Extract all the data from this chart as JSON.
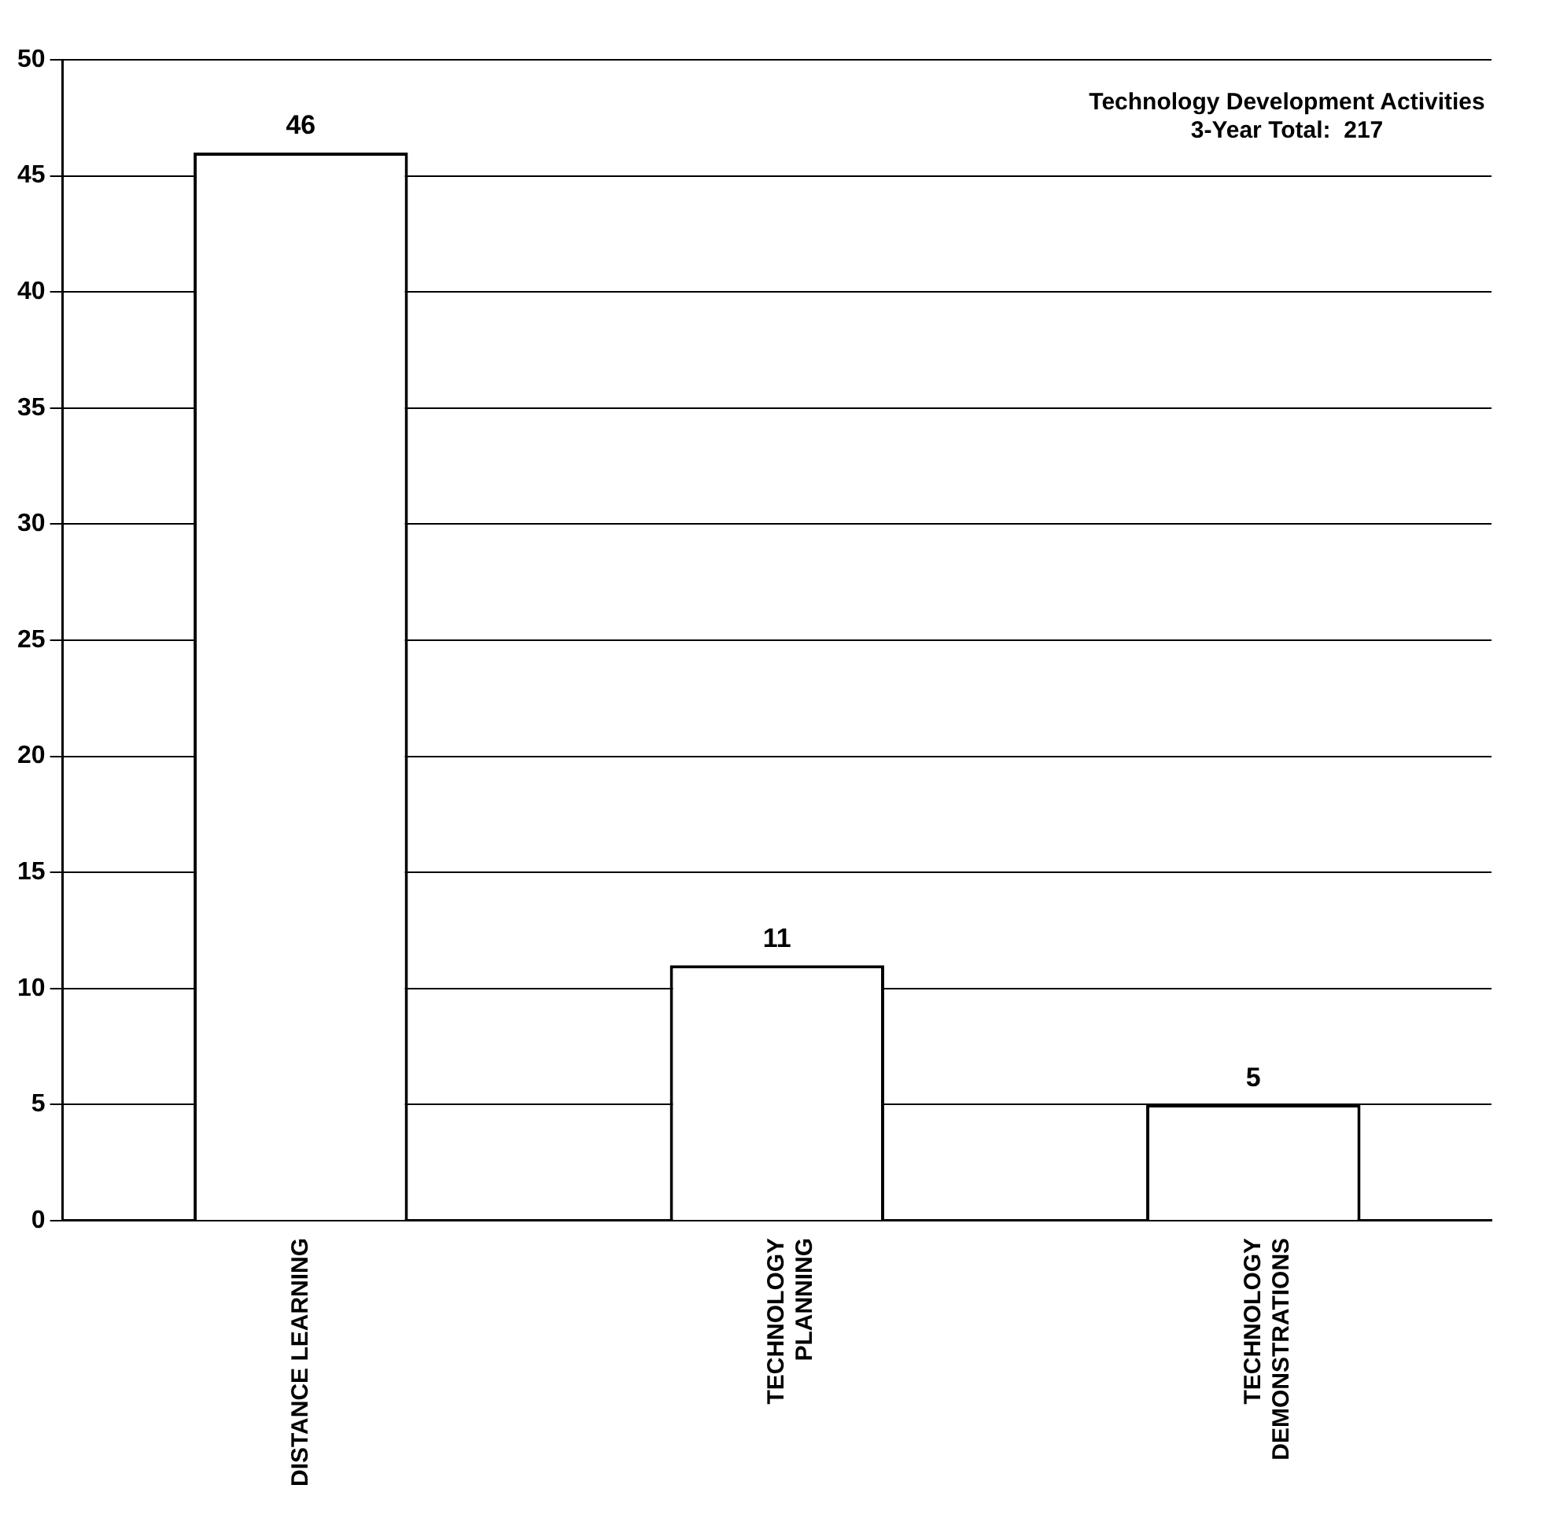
{
  "chart_data": {
    "type": "bar",
    "categories": [
      "DISTANCE LEARNING",
      "TECHNOLOGY\nPLANNING",
      "TECHNOLOGY\nDEMONSTRATIONS"
    ],
    "values": [
      46,
      11,
      5
    ],
    "color": "#ffffff",
    "ylim": [
      0,
      50
    ],
    "yticks": [
      0,
      5,
      10,
      15,
      20,
      25,
      30,
      35,
      40,
      45,
      50
    ],
    "grid": "y",
    "data_labels": true,
    "annotations": [
      "Technology Development Activities",
      "3-Year Total:  217"
    ]
  }
}
